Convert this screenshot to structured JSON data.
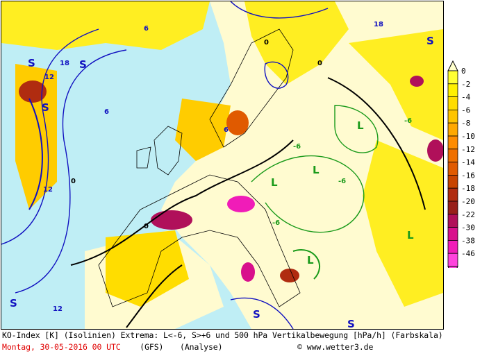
{
  "caption": {
    "line1": "KO-Index [K] (Isolinien) Extrema: L<-6, S>+6 und 500 hPa Vertikalbewegung [hPa/h] (Farbskala)",
    "date": "Montag, 30-05-2016  00 UTC",
    "model": "(GFS)",
    "run": "(Analyse)",
    "copyright": "© www.wetter3.de"
  },
  "legend": {
    "ticks": [
      "0",
      "-2",
      "-4",
      "-6",
      "-8",
      "-10",
      "-12",
      "-14",
      "-16",
      "-18",
      "-20",
      "-22",
      "-30",
      "-38",
      "-46"
    ],
    "colors": [
      "#ffff33",
      "#fff000",
      "#ffdd00",
      "#ffc400",
      "#ffa800",
      "#ff8c00",
      "#f07000",
      "#e05a00",
      "#c84400",
      "#b02c10",
      "#98201a",
      "#b0105a",
      "#d8108c",
      "#f01cb8",
      "#ff44dd"
    ]
  },
  "map": {
    "background": "#bfeef5",
    "contour_labels": [
      "0",
      "0",
      "0",
      "0",
      "-6",
      "-6",
      "-6",
      "-6",
      "6",
      "6",
      "6",
      "12",
      "12",
      "12",
      "18",
      "18"
    ],
    "extrema_labels": [
      "S",
      "S",
      "S",
      "S",
      "S",
      "S",
      "S",
      "L",
      "L",
      "L",
      "L",
      "L"
    ],
    "colors": {
      "isoline_positive": "#1010c0",
      "isoline_negative": "#1a9a1a",
      "isoline_zero": "#000000",
      "coast": "#000000"
    }
  }
}
